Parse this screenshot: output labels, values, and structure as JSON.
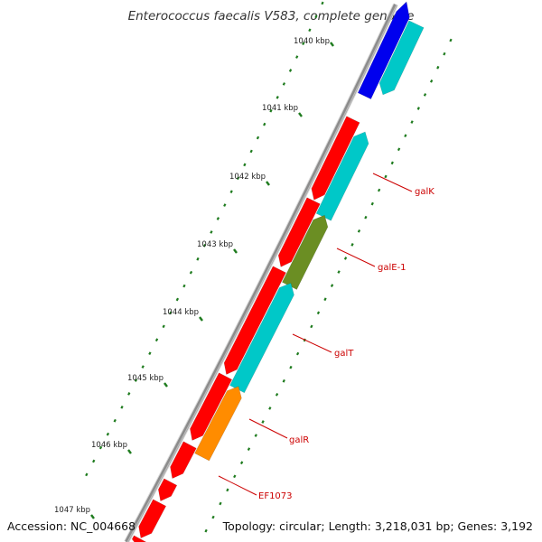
{
  "title": "Enterococcus faecalis V583, complete genome",
  "footer": {
    "accession": "Accession: NC_004668",
    "summary": "Topology: circular; Length: 3,218,031 bp; Genes: 3,192"
  },
  "colors": {
    "backbone": "#8c8c8c",
    "tick": "#1e7b1e",
    "label": "#cc0000",
    "ruler_text": "#222222"
  },
  "ruler": {
    "ticks": [
      {
        "label": "1040 kbp",
        "value_kbp": 1040
      },
      {
        "label": "1041 kbp",
        "value_kbp": 1041
      },
      {
        "label": "1042 kbp",
        "value_kbp": 1042
      },
      {
        "label": "1043 kbp",
        "value_kbp": 1043
      },
      {
        "label": "1044 kbp",
        "value_kbp": 1044
      },
      {
        "label": "1045 kbp",
        "value_kbp": 1045
      },
      {
        "label": "1046 kbp",
        "value_kbp": 1046
      },
      {
        "label": "1047 kbp",
        "value_kbp": 1047
      }
    ]
  },
  "features": [
    {
      "track": "cyan-outer",
      "color": "#00c8c8",
      "strand": "forward"
    },
    {
      "track": "blue",
      "color": "#0000ee",
      "strand": "forward"
    },
    {
      "track": "red-1",
      "color": "#ff0000",
      "strand": "reverse"
    },
    {
      "track": "red-2",
      "color": "#ff0000",
      "strand": "reverse"
    },
    {
      "track": "red-3",
      "color": "#ff0000",
      "strand": "reverse"
    },
    {
      "track": "red-4",
      "color": "#ff0000",
      "strand": "reverse"
    },
    {
      "track": "red-5",
      "color": "#ff0000",
      "strand": "reverse"
    },
    {
      "track": "red-6",
      "color": "#ff0000",
      "strand": "reverse"
    },
    {
      "track": "red-7",
      "color": "#ff0000",
      "strand": "reverse"
    },
    {
      "track": "red-8",
      "color": "#ff0000",
      "strand": "reverse"
    },
    {
      "track": "galK",
      "color": "#00c8c8",
      "strand": "reverse"
    },
    {
      "track": "galE-1",
      "color": "#6b8e23",
      "strand": "reverse"
    },
    {
      "track": "galT",
      "color": "#00c8c8",
      "strand": "reverse"
    },
    {
      "track": "galR",
      "color": "#ff8c00",
      "strand": "reverse"
    }
  ],
  "gene_labels": [
    "galK",
    "galE-1",
    "galT",
    "galR",
    "EF1073"
  ]
}
